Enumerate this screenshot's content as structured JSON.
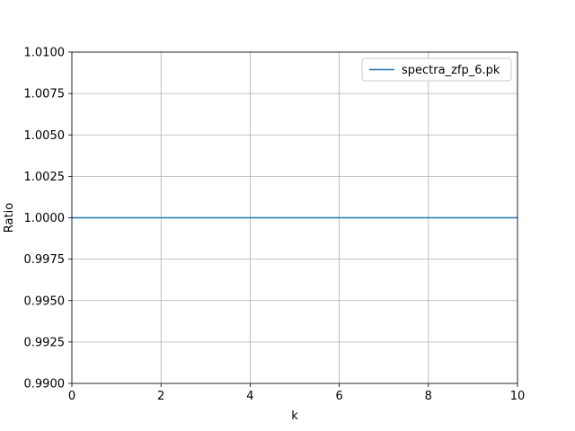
{
  "chart_data": {
    "type": "line",
    "title": "",
    "xlabel": "k",
    "ylabel": "Ratio",
    "xlim": [
      0,
      10
    ],
    "ylim": [
      0.99,
      1.01
    ],
    "x_ticks": [
      0,
      2,
      4,
      6,
      8,
      10
    ],
    "x_tick_labels": [
      "0",
      "2",
      "4",
      "6",
      "8",
      "10"
    ],
    "y_ticks": [
      0.99,
      0.9925,
      0.995,
      0.9975,
      1.0,
      1.0025,
      1.005,
      1.0075,
      1.01
    ],
    "y_tick_labels": [
      "0.9900",
      "0.9925",
      "0.9950",
      "0.9975",
      "1.0000",
      "1.0025",
      "1.0050",
      "1.0075",
      "1.0100"
    ],
    "grid": true,
    "legend_position": "top-right",
    "series": [
      {
        "name": "spectra_zfp_6.pk",
        "color": "#1f77b4",
        "x": [
          0,
          10
        ],
        "y": [
          1.0,
          1.0
        ]
      }
    ]
  }
}
